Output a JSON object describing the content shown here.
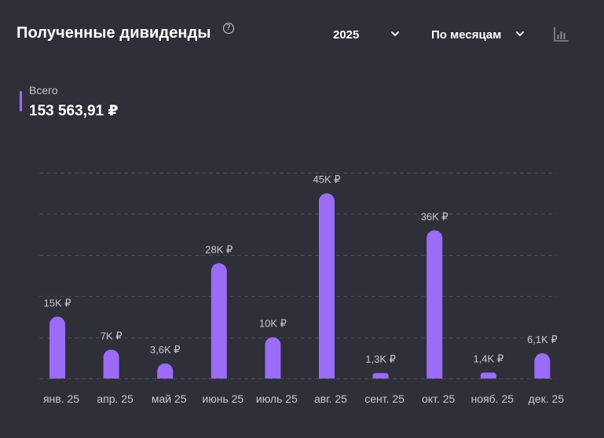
{
  "header": {
    "title": "Полученные дивиденды",
    "help_icon": "question-circle-icon",
    "year_select": {
      "value": "2025",
      "icon": "chevron-down-icon"
    },
    "period_select": {
      "value": "По месяцам",
      "icon": "chevron-down-icon"
    },
    "chart_type_icon": "bar-chart-icon"
  },
  "summary": {
    "label": "Всего",
    "value": "153 563,91 ₽",
    "marker_color": "#9b6cf5"
  },
  "colors": {
    "background": "#2f2f3a",
    "bar": "#9b6cf5",
    "grid": "#4b4b58",
    "text_muted": "#c9c9d1"
  },
  "chart_data": {
    "type": "bar",
    "categories": [
      "янв. 25",
      "апр. 25",
      "май 25",
      "июнь 25",
      "июль 25",
      "авг. 25",
      "сент. 25",
      "окт. 25",
      "нояб. 25",
      "дек. 25"
    ],
    "values": [
      15000,
      7000,
      3600,
      28000,
      10000,
      45000,
      1300,
      36000,
      1400,
      6100
    ],
    "value_labels": [
      "15K ₽",
      "7K ₽",
      "3,6K ₽",
      "28K ₽",
      "10K ₽",
      "45K ₽",
      "1,3K ₽",
      "36K ₽",
      "1,4K ₽",
      "6,1K ₽"
    ],
    "ylim": [
      0,
      50000
    ],
    "grid": true,
    "grid_style": "dashed",
    "title": "",
    "xlabel": "",
    "ylabel": ""
  }
}
